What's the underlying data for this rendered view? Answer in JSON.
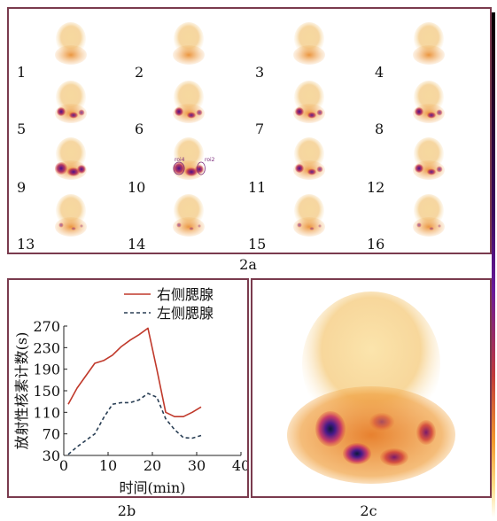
{
  "panel_a": {
    "frame_numbers": [
      "1",
      "2",
      "3",
      "4",
      "5",
      "6",
      "7",
      "8",
      "9",
      "10",
      "11",
      "12",
      "13",
      "14",
      "15",
      "16"
    ],
    "roi_labels": [
      "roi4",
      "roi2"
    ],
    "caption": "2a"
  },
  "panel_b": {
    "caption": "2b"
  },
  "panel_c": {
    "caption": "2c"
  },
  "chart_data": {
    "type": "line",
    "title": "",
    "xlabel": "时间(min)",
    "ylabel": "放射性核素计数(s)",
    "xlim": [
      0,
      40
    ],
    "ylim": [
      30,
      270
    ],
    "xticks": [
      "0",
      "10",
      "20",
      "30",
      "40"
    ],
    "yticks": [
      "30",
      "70",
      "110",
      "150",
      "190",
      "230",
      "270"
    ],
    "legend_position": "top-right",
    "grid": false,
    "series": [
      {
        "name": "右侧腮腺",
        "style": "solid",
        "color": "#c0392b",
        "x": [
          1,
          3,
          5,
          7,
          9,
          11,
          13,
          15,
          17,
          19,
          21,
          23,
          25,
          27,
          29,
          31
        ],
        "values": [
          125,
          155,
          178,
          201,
          206,
          216,
          232,
          244,
          254,
          266,
          190,
          110,
          102,
          102,
          110,
          120
        ]
      },
      {
        "name": "左侧腮腺",
        "style": "dashed",
        "color": "#2a3f55",
        "x": [
          1,
          3,
          5,
          7,
          9,
          11,
          13,
          15,
          17,
          19,
          21,
          23,
          25,
          27,
          29,
          31
        ],
        "values": [
          32,
          46,
          58,
          70,
          100,
          125,
          128,
          128,
          133,
          145,
          138,
          98,
          78,
          63,
          62,
          67
        ]
      }
    ]
  }
}
